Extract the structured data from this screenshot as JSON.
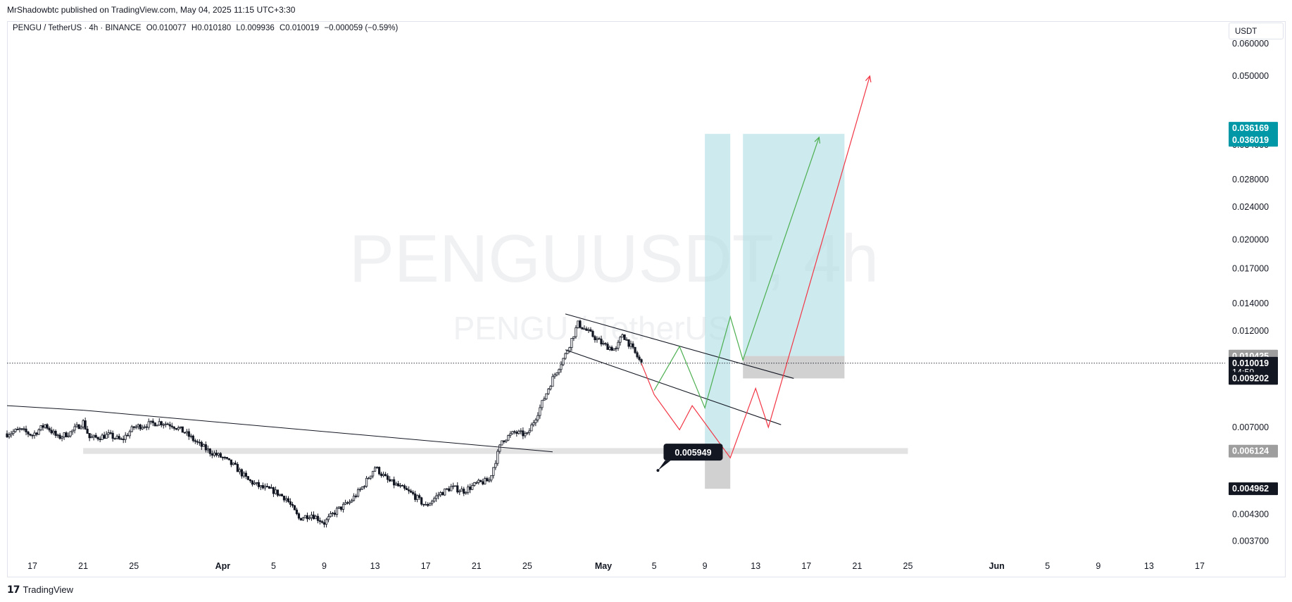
{
  "publisher": "MrShadowbtc published on TradingView.com, May 04, 2025 11:15 UTC+3:30",
  "legend": {
    "symbol": "PENGU / TetherUS · 4h · BINANCE",
    "open": "O0.010077",
    "high": "H0.010180",
    "low": "L0.009936",
    "close": "C0.010019",
    "change": "−0.000059 (−0.59%)"
  },
  "currency": "USDT",
  "watermark": {
    "line1": "PENGUUSDT, 4h",
    "line2": "PENGU / TetherUS"
  },
  "brand": "TradingView",
  "chart_data": {
    "type": "candlestick",
    "scale": "log",
    "ylim": [
      0.0034,
      0.068
    ],
    "x_range_days": [
      "2025-03-15",
      "2025-06-19"
    ],
    "y_ticks": [
      "0.060000",
      "0.050000",
      "0.034000",
      "0.028000",
      "0.024000",
      "0.020000",
      "0.017000",
      "0.014000",
      "0.012000",
      "0.007000",
      "0.004300",
      "0.003700"
    ],
    "y_tick_values": [
      0.06,
      0.05,
      0.034,
      0.028,
      0.024,
      0.02,
      0.017,
      0.014,
      0.012,
      0.007,
      0.0043,
      0.0037
    ],
    "x_ticks": [
      {
        "label": "17",
        "date": "2025-03-17",
        "bold": false
      },
      {
        "label": "21",
        "date": "2025-03-21",
        "bold": false
      },
      {
        "label": "25",
        "date": "2025-03-25",
        "bold": false
      },
      {
        "label": "Apr",
        "date": "2025-04-01",
        "bold": true
      },
      {
        "label": "5",
        "date": "2025-04-05",
        "bold": false
      },
      {
        "label": "9",
        "date": "2025-04-09",
        "bold": false
      },
      {
        "label": "13",
        "date": "2025-04-13",
        "bold": false
      },
      {
        "label": "17",
        "date": "2025-04-17",
        "bold": false
      },
      {
        "label": "21",
        "date": "2025-04-21",
        "bold": false
      },
      {
        "label": "25",
        "date": "2025-04-25",
        "bold": false
      },
      {
        "label": "May",
        "date": "2025-05-01",
        "bold": true
      },
      {
        "label": "5",
        "date": "2025-05-05",
        "bold": false
      },
      {
        "label": "9",
        "date": "2025-05-09",
        "bold": false
      },
      {
        "label": "13",
        "date": "2025-05-13",
        "bold": false
      },
      {
        "label": "17",
        "date": "2025-05-17",
        "bold": false
      },
      {
        "label": "21",
        "date": "2025-05-21",
        "bold": false
      },
      {
        "label": "25",
        "date": "2025-05-25",
        "bold": false
      },
      {
        "label": "Jun",
        "date": "2025-06-01",
        "bold": true
      },
      {
        "label": "5",
        "date": "2025-06-05",
        "bold": false
      },
      {
        "label": "9",
        "date": "2025-06-09",
        "bold": false
      },
      {
        "label": "13",
        "date": "2025-06-13",
        "bold": false
      },
      {
        "label": "17",
        "date": "2025-06-17",
        "bold": false
      }
    ],
    "price_path": [
      {
        "date": "2025-03-15",
        "price": 0.00675
      },
      {
        "date": "2025-03-16",
        "price": 0.0069
      },
      {
        "date": "2025-03-17",
        "price": 0.0067
      },
      {
        "date": "2025-03-18",
        "price": 0.0071
      },
      {
        "date": "2025-03-19",
        "price": 0.0066
      },
      {
        "date": "2025-03-20",
        "price": 0.0068
      },
      {
        "date": "2025-03-21",
        "price": 0.0072
      },
      {
        "date": "2025-03-21.5",
        "price": 0.0066
      },
      {
        "date": "2025-03-22",
        "price": 0.0066
      },
      {
        "date": "2025-03-23",
        "price": 0.0067
      },
      {
        "date": "2025-03-24",
        "price": 0.0065
      },
      {
        "date": "2025-03-25",
        "price": 0.007
      },
      {
        "date": "2025-03-26",
        "price": 0.0071
      },
      {
        "date": "2025-03-27",
        "price": 0.0072
      },
      {
        "date": "2025-03-28",
        "price": 0.0071
      },
      {
        "date": "2025-03-29",
        "price": 0.0068
      },
      {
        "date": "2025-03-30",
        "price": 0.0064
      },
      {
        "date": "2025-03-31",
        "price": 0.0061
      },
      {
        "date": "2025-04-01",
        "price": 0.0059
      },
      {
        "date": "2025-04-02",
        "price": 0.0056
      },
      {
        "date": "2025-04-03",
        "price": 0.0052
      },
      {
        "date": "2025-04-04",
        "price": 0.005
      },
      {
        "date": "2025-04-05",
        "price": 0.0049
      },
      {
        "date": "2025-04-06",
        "price": 0.0047
      },
      {
        "date": "2025-04-07",
        "price": 0.0042
      },
      {
        "date": "2025-04-08",
        "price": 0.0043
      },
      {
        "date": "2025-04-09",
        "price": 0.0041
      },
      {
        "date": "2025-04-10",
        "price": 0.0044
      },
      {
        "date": "2025-04-11",
        "price": 0.0046
      },
      {
        "date": "2025-04-12",
        "price": 0.005
      },
      {
        "date": "2025-04-13",
        "price": 0.0056
      },
      {
        "date": "2025-04-14",
        "price": 0.0052
      },
      {
        "date": "2025-04-15",
        "price": 0.005
      },
      {
        "date": "2025-04-16",
        "price": 0.0048
      },
      {
        "date": "2025-04-17",
        "price": 0.0045
      },
      {
        "date": "2025-04-18",
        "price": 0.0048
      },
      {
        "date": "2025-04-19",
        "price": 0.005
      },
      {
        "date": "2025-04-20",
        "price": 0.0049
      },
      {
        "date": "2025-04-21",
        "price": 0.0051
      },
      {
        "date": "2025-04-22",
        "price": 0.0052
      },
      {
        "date": "2025-04-23",
        "price": 0.0065
      },
      {
        "date": "2025-04-24",
        "price": 0.0068
      },
      {
        "date": "2025-04-25",
        "price": 0.0067
      },
      {
        "date": "2025-04-26",
        "price": 0.0078
      },
      {
        "date": "2025-04-27",
        "price": 0.0092
      },
      {
        "date": "2025-04-28",
        "price": 0.0105
      },
      {
        "date": "2025-04-29",
        "price": 0.0125
      },
      {
        "date": "2025-04-30",
        "price": 0.0118
      },
      {
        "date": "2025-05-01",
        "price": 0.0111
      },
      {
        "date": "2025-05-02",
        "price": 0.0108
      },
      {
        "date": "2025-05-02.5",
        "price": 0.0118
      },
      {
        "date": "2025-05-03",
        "price": 0.0112
      },
      {
        "date": "2025-05-04",
        "price": 0.01
      }
    ],
    "drawings": {
      "resistance_trendline": [
        [
          "2025-03-21",
          0.0077
        ],
        [
          "2025-04-27",
          0.0061
        ]
      ],
      "channel_top": [
        [
          "2025-04-28",
          0.0132
        ],
        [
          "2025-05-16",
          0.0092
        ]
      ],
      "channel_bottom": [
        [
          "2025-04-28",
          0.0108
        ],
        [
          "2025-05-15",
          0.0071
        ]
      ],
      "support_zone": {
        "from": "2025-03-21",
        "to": "2025-05-25",
        "low": 0.00603,
        "high": 0.00623
      },
      "long_position_1": {
        "from": "2025-05-09",
        "to": "2025-05-11",
        "entry": 0.00612,
        "stop": 0.00496,
        "target": 0.03617
      },
      "long_position_2": {
        "from": "2025-05-12",
        "to": "2025-05-20",
        "entry": 0.01043,
        "stop": 0.0092,
        "target": 0.03617
      },
      "green_path": [
        [
          "2025-05-05",
          0.0086
        ],
        [
          "2025-05-07",
          0.011
        ],
        [
          "2025-05-09",
          0.0078
        ],
        [
          "2025-05-11",
          0.013
        ],
        [
          "2025-05-12",
          0.0102
        ],
        [
          "2025-05-18",
          0.0355
        ]
      ],
      "red_path": [
        [
          "2025-05-04",
          0.01
        ],
        [
          "2025-05-05",
          0.0084
        ],
        [
          "2025-05-07",
          0.0069
        ],
        [
          "2025-05-08",
          0.0079
        ],
        [
          "2025-05-11",
          0.0059
        ],
        [
          "2025-05-13",
          0.0087
        ],
        [
          "2025-05-14",
          0.007
        ],
        [
          "2025-05-22",
          0.05
        ]
      ]
    },
    "current_price": 0.010019,
    "price_labels": [
      {
        "text": "0.036169",
        "value": 0.036169,
        "color": "#0097a7",
        "text_color": "#ffffff"
      },
      {
        "text": "0.036019",
        "value": 0.036019,
        "color": "#0097a7",
        "text_color": "#ffffff"
      },
      {
        "text": "0.010425",
        "value": 0.010425,
        "color": "#9e9e9e",
        "text_color": "#ffffff"
      },
      {
        "text": "0.010019",
        "value": 0.010019,
        "color": "#131722",
        "text_color": "#ffffff",
        "sub": "14:59"
      },
      {
        "text": "0.009202",
        "value": 0.009202,
        "color": "#131722",
        "text_color": "#ffffff"
      },
      {
        "text": "0.006124",
        "value": 0.006124,
        "color": "#9e9e9e",
        "text_color": "#ffffff"
      },
      {
        "text": "0.004962",
        "value": 0.004962,
        "color": "#131722",
        "text_color": "#ffffff"
      }
    ],
    "callout": {
      "text": "0.005949",
      "date": "2025-05-05.3",
      "value": 0.005949
    }
  }
}
